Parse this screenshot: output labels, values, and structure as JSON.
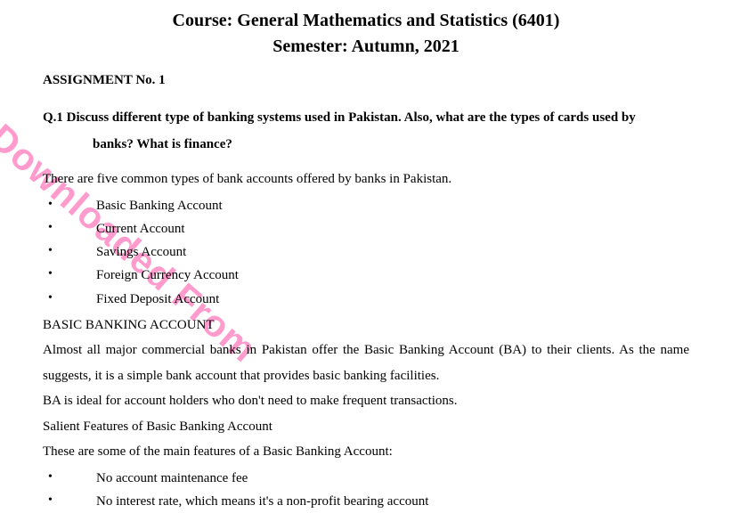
{
  "header": {
    "course_line": "Course: General Mathematics and Statistics (6401)",
    "semester_line": "Semester: Autumn, 2021",
    "assignment_label": "ASSIGNMENT No. 1"
  },
  "question": {
    "prefix": "Q.1",
    "line1": "Q.1   Discuss different type of banking systems used in Pakistan. Also, what are the types of cards used by",
    "line2": "banks? What is finance?"
  },
  "intro": "There are five common types of bank accounts offered by banks in Pakistan.",
  "accounts": [
    "Basic Banking Account",
    "Current Account",
    "Savings Account",
    "Foreign Currency Account",
    "Fixed Deposit Account"
  ],
  "section_heading": "BASIC BANKING ACCOUNT",
  "para1": "Almost all major commercial banks in Pakistan offer the Basic Banking Account (BA) to their clients. As the name suggests, it is a simple bank account that provides basic banking facilities.",
  "para2": "BA is ideal for account holders who don't need to make frequent transactions.",
  "salient_heading": "Salient Features of Basic Banking Account",
  "para3": "These are some of the main features of a Basic Banking Account:",
  "features": [
    "No account maintenance fee",
    "No interest rate, which means it's a non-profit bearing account"
  ],
  "watermark_text": "Downloaded From",
  "style": {
    "text_color": "#000000",
    "background_color": "#ffffff",
    "watermark_color": "#ff4da6",
    "watermark_opacity": 0.55,
    "font_family": "Times New Roman",
    "title_fontsize": 20,
    "body_fontsize": 15,
    "watermark_fontsize": 42,
    "watermark_rotation_deg": 41
  }
}
